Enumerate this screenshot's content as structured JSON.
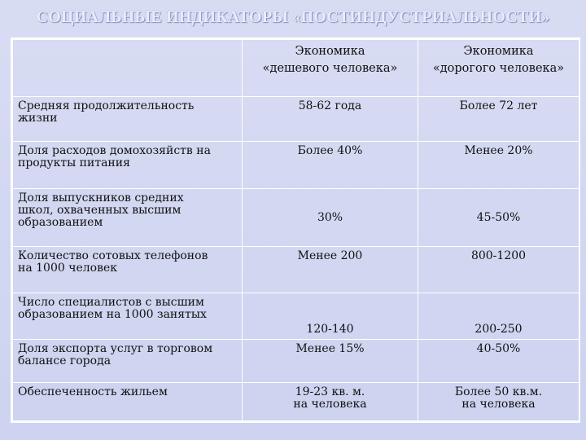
{
  "title": "СОЦИАЛЬНЫЕ ИНДИКАТОРЫ «ПОСТИНДУСТРИАЛЬНОСТИ»",
  "columns": {
    "col1": [
      "Экономика",
      "«дешевого человека»"
    ],
    "col2": [
      "Экономика",
      "«дорогого человека»"
    ]
  },
  "rows": [
    {
      "label": [
        "Средняя продолжительность",
        "жизни"
      ],
      "v1": [
        "58-62 года"
      ],
      "v2": [
        "Более 72 лет"
      ]
    },
    {
      "label": [
        "Доля расходов домохозяйств на",
        "продукты питания"
      ],
      "v1": [
        "Более 40%"
      ],
      "v2": [
        "Менее 20%"
      ]
    },
    {
      "label": [
        "Доля выпускников средних",
        "школ, охваченных высшим",
        "образованием"
      ],
      "v1": [
        "30%"
      ],
      "v2": [
        "45-50%"
      ]
    },
    {
      "label": [
        "Количество сотовых телефонов",
        "на 1000 человек"
      ],
      "v1": [
        "Менее 200"
      ],
      "v2": [
        "800-1200"
      ]
    },
    {
      "label": [
        "Число специалистов с высшим",
        "образованием на 1000 занятых"
      ],
      "v1": [
        "120-140"
      ],
      "v2": [
        "200-250"
      ]
    },
    {
      "label": [
        "Доля экспорта услуг в торговом",
        "балансе города"
      ],
      "v1": [
        "Менее 15%"
      ],
      "v2": [
        "40-50%"
      ]
    },
    {
      "label": [
        "Обеспеченность жильем"
      ],
      "v1": [
        "19-23 кв. м.",
        "на человека"
      ],
      "v2": [
        "Более 50 кв.м.",
        "на человека"
      ]
    }
  ]
}
